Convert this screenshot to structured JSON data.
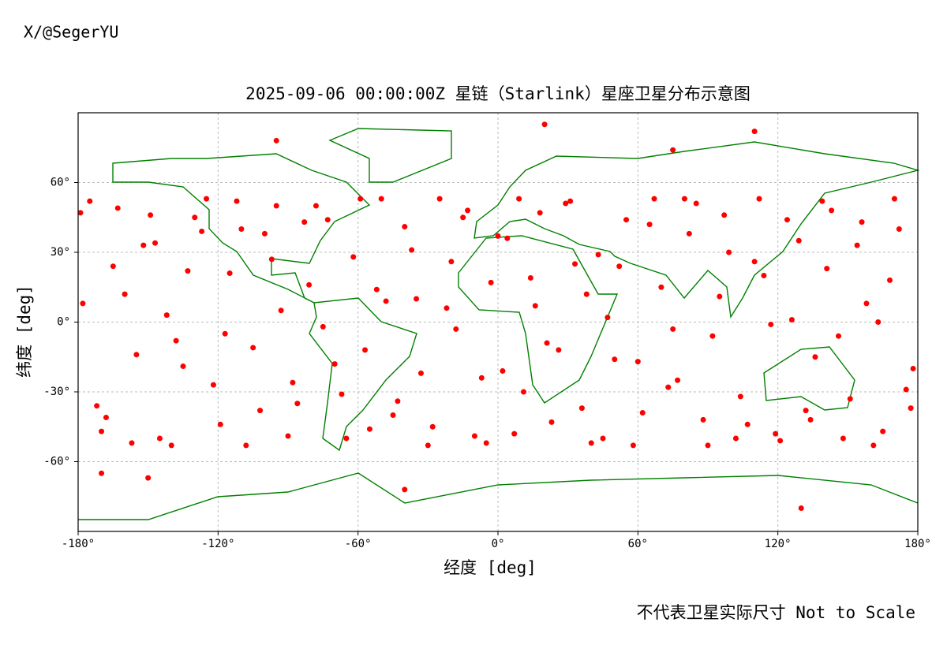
{
  "watermark": "X/@SegerYU",
  "footnote": "不代表卫星实际尺寸 Not to Scale",
  "chart_data": {
    "type": "scatter",
    "title": "2025-09-06 00:00:00Z 星链（Starlink）星座卫星分布示意图",
    "x_label": "经度 [deg]",
    "y_label": "纬度 [deg]",
    "color": "#ff0000",
    "grid": true,
    "xlim": [
      -180,
      180
    ],
    "ylim": [
      -90,
      90
    ],
    "xticks": [
      {
        "value": -180,
        "label": "-180°"
      },
      {
        "value": -120,
        "label": "-120°"
      },
      {
        "value": -60,
        "label": "-60°"
      },
      {
        "value": 0,
        "label": "0°"
      },
      {
        "value": 60,
        "label": "60°"
      },
      {
        "value": 120,
        "label": "120°"
      },
      {
        "value": 180,
        "label": "180°"
      }
    ],
    "yticks": [
      {
        "value": -60,
        "label": "-60°"
      },
      {
        "value": -30,
        "label": "-30°"
      },
      {
        "value": 0,
        "label": "0°"
      },
      {
        "value": 30,
        "label": "30°"
      },
      {
        "value": 60,
        "label": "60°"
      }
    ],
    "x": [
      -175,
      -168,
      -160,
      -152,
      -145,
      -138,
      -130,
      -122,
      -115,
      -108,
      -100,
      -93,
      -86,
      -78,
      -70,
      -62,
      -55,
      -48,
      -40,
      -33,
      -25,
      -18,
      -10,
      -3,
      4,
      11,
      18,
      26,
      33,
      40,
      47,
      55,
      62,
      70,
      77,
      85,
      92,
      99,
      107,
      114,
      121,
      129,
      136,
      143,
      151,
      158,
      165,
      172,
      178,
      -172,
      -165,
      -157,
      -149,
      -142,
      -135,
      -127,
      -119,
      -112,
      -105,
      -97,
      -90,
      -83,
      -75,
      -67,
      -59,
      -52,
      -45,
      -37,
      -30,
      -22,
      -15,
      -7,
      0,
      7,
      14,
      21,
      29,
      36,
      43,
      50,
      58,
      65,
      73,
      80,
      88,
      95,
      102,
      110,
      117,
      124,
      132,
      139,
      146,
      154,
      161,
      168,
      175,
      -179,
      -178,
      -170,
      -163,
      -155,
      -147,
      -140,
      -133,
      -125,
      -117,
      -110,
      -102,
      -95,
      -88,
      -81,
      -73,
      -65,
      -57,
      -50,
      -43,
      -35,
      -28,
      -20,
      -13,
      -5,
      2,
      9,
      16,
      23,
      31,
      38,
      45,
      52,
      60,
      67,
      75,
      82,
      90,
      97,
      104,
      112,
      119,
      126,
      134,
      141,
      148,
      156,
      163,
      170,
      177,
      -150,
      -95,
      -40,
      20,
      75,
      130,
      -170,
      110
    ],
    "values": [
      52,
      -41,
      12,
      33,
      -50,
      -8,
      45,
      -27,
      21,
      -53,
      38,
      5,
      -35,
      50,
      -18,
      28,
      -46,
      9,
      41,
      -22,
      53,
      -3,
      -49,
      17,
      36,
      -30,
      47,
      -12,
      25,
      -52,
      2,
      44,
      -39,
      15,
      -25,
      51,
      -6,
      30,
      -44,
      20,
      -51,
      35,
      -15,
      48,
      -33,
      8,
      -47,
      40,
      -20,
      -36,
      24,
      -52,
      46,
      3,
      -19,
      39,
      -44,
      52,
      -11,
      27,
      -49,
      43,
      -2,
      -31,
      53,
      14,
      -40,
      31,
      -53,
      6,
      45,
      -24,
      37,
      -48,
      19,
      -9,
      51,
      -37,
      29,
      -16,
      -53,
      42,
      -28,
      53,
      -42,
      11,
      -50,
      26,
      -1,
      44,
      -38,
      52,
      -6,
      33,
      -53,
      18,
      -29,
      47,
      8,
      -47,
      49,
      -14,
      34,
      -53,
      22,
      53,
      -5,
      40,
      -38,
      50,
      -26,
      16,
      44,
      -50,
      -12,
      53,
      -34,
      10,
      -45,
      26,
      48,
      -52,
      -21,
      53,
      7,
      -43,
      52,
      12,
      -50,
      24,
      -17,
      53,
      -3,
      38,
      -53,
      46,
      -32,
      53,
      -48,
      1,
      -42,
      23,
      -50,
      43,
      0,
      53,
      -37,
      -67,
      78,
      -72,
      85,
      74,
      -80,
      -65,
      82
    ]
  }
}
